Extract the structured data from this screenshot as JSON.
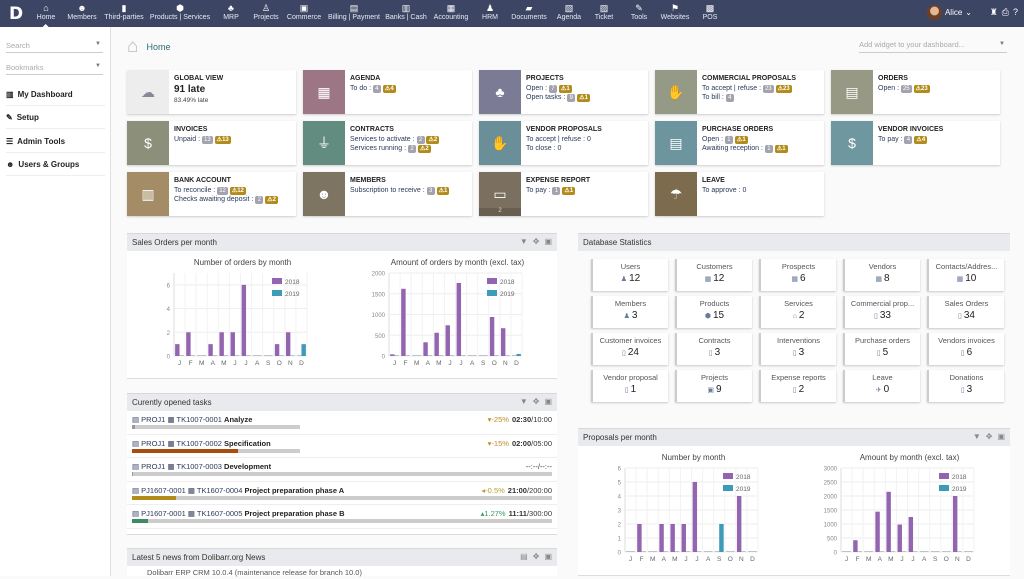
{
  "topbar": {
    "logo": "D",
    "menu": [
      {
        "label": "Home",
        "icon": "home-icon",
        "glyph": "⌂"
      },
      {
        "label": "Members",
        "icon": "members-icon",
        "glyph": "☻"
      },
      {
        "label": "Third-parties",
        "icon": "building-icon",
        "glyph": "▮"
      },
      {
        "label": "Products | Services",
        "icon": "cube-icon",
        "glyph": "⬢"
      },
      {
        "label": "MRP",
        "icon": "cubes-icon",
        "glyph": "♣"
      },
      {
        "label": "Projects",
        "icon": "sitemap-icon",
        "glyph": "♙"
      },
      {
        "label": "Commerce",
        "icon": "briefcase-icon",
        "glyph": "▣"
      },
      {
        "label": "Billing | Payment",
        "icon": "invoice-icon",
        "glyph": "▤"
      },
      {
        "label": "Banks | Cash",
        "icon": "bank-icon",
        "glyph": "▥"
      },
      {
        "label": "Accounting",
        "icon": "accounting-icon",
        "glyph": "▦"
      },
      {
        "label": "HRM",
        "icon": "user-tie-icon",
        "glyph": "♟"
      },
      {
        "label": "Documents",
        "icon": "folder-icon",
        "glyph": "▰"
      },
      {
        "label": "Agenda",
        "icon": "calendar-icon",
        "glyph": "▧"
      },
      {
        "label": "Ticket",
        "icon": "ticket-icon",
        "glyph": "▨"
      },
      {
        "label": "Tools",
        "icon": "wrench-icon",
        "glyph": "✎"
      },
      {
        "label": "Websites",
        "icon": "website-icon",
        "glyph": "⚑"
      },
      {
        "label": "POS",
        "icon": "cash-register-icon",
        "glyph": "▩"
      }
    ],
    "user": "Alice",
    "icons": [
      "user-tools-icon",
      "print-icon",
      "help-icon"
    ]
  },
  "sidebar": {
    "search_placeholder": "Search",
    "bookmarks_placeholder": "Bookmarks",
    "items": [
      {
        "label": "My Dashboard",
        "glyph": "▥"
      },
      {
        "label": "Setup",
        "glyph": "✎"
      },
      {
        "label": "Admin Tools",
        "glyph": "☰"
      },
      {
        "label": "Users & Groups",
        "glyph": "☻"
      }
    ]
  },
  "breadcrumb": "Home",
  "add_widget_placeholder": "Add widget to your dashboard...",
  "widgets": [
    {
      "title": "GLOBAL VIEW",
      "big": "91 late",
      "sub": "83.49% late",
      "color": "#ededed",
      "icon": "weather-storm-icon"
    },
    {
      "title": "AGENDA",
      "lines": [
        {
          "label": "To do : ",
          "badge": "4",
          "warn": "4"
        }
      ],
      "color": "#9d7686",
      "icon": "calendar-icon"
    },
    {
      "title": "PROJECTS",
      "lines": [
        {
          "label": "Open : ",
          "badge": "7",
          "warn": "1"
        },
        {
          "label": "Open tasks : ",
          "badge": "9",
          "warn": "1"
        }
      ],
      "color": "#7c7b95",
      "icon": "sitemap-icon"
    },
    {
      "title": "COMMERCIAL PROPOSALS",
      "lines": [
        {
          "label": "To accept | refuse : ",
          "badge": "23",
          "warn": "23"
        },
        {
          "label": "To bill : ",
          "badge": "4"
        }
      ],
      "color": "#959a86",
      "icon": "handshake-icon"
    },
    {
      "title": "ORDERS",
      "lines": [
        {
          "label": "Open : ",
          "badge": "25",
          "warn": "23"
        }
      ],
      "color": "#979985",
      "icon": "order-icon"
    },
    {
      "title": "INVOICES",
      "lines": [
        {
          "label": "Unpaid : ",
          "badge": "13",
          "warn": "13"
        }
      ],
      "color": "#8c907a",
      "icon": "invoice-icon"
    },
    {
      "title": "CONTRACTS",
      "lines": [
        {
          "label": "Services to activate : ",
          "badge": "2",
          "warn": "2"
        },
        {
          "label": "Services running : ",
          "badge": "2",
          "warn": "2"
        }
      ],
      "color": "#628c80",
      "icon": "plug-icon"
    },
    {
      "title": "VENDOR PROPOSALS",
      "lines": [
        {
          "label": "To accept | refuse : 0"
        },
        {
          "label": "To close : 0"
        }
      ],
      "color": "#6b8f98",
      "icon": "handshake-icon"
    },
    {
      "title": "PURCHASE ORDERS",
      "lines": [
        {
          "label": "Open : ",
          "badge": "1",
          "warn": "1"
        },
        {
          "label": "Awaiting reception : ",
          "badge": "1",
          "warn": "1"
        }
      ],
      "color": "#6d95a0",
      "icon": "order-icon"
    },
    {
      "title": "VENDOR INVOICES",
      "lines": [
        {
          "label": "To pay : ",
          "badge": "4",
          "warn": "4"
        }
      ],
      "color": "#6f97a0",
      "icon": "invoice-icon"
    },
    {
      "title": "BANK ACCOUNT",
      "lines": [
        {
          "label": "To reconcile : ",
          "badge": "12",
          "warn": "12"
        },
        {
          "label": "Checks awaiting deposit : ",
          "badge": "2",
          "warn": "2"
        }
      ],
      "color": "#a48c66",
      "icon": "bank-icon"
    },
    {
      "title": "MEMBERS",
      "lines": [
        {
          "label": "Subscription to receive : ",
          "badge": "3",
          "warn": "1"
        }
      ],
      "color": "#7d7461",
      "icon": "members-icon"
    },
    {
      "title": "EXPENSE REPORT",
      "lines": [
        {
          "label": "To pay : ",
          "badge": "1",
          "warn": "1"
        }
      ],
      "color": "#7b7060",
      "icon": "wallet-icon",
      "footer": "2"
    },
    {
      "title": "LEAVE",
      "lines": [
        {
          "label": "To approve : 0"
        }
      ],
      "color": "#7d6b4e",
      "icon": "beach-umbrella-icon"
    }
  ],
  "sales_panel": {
    "title": "Sales Orders per month"
  },
  "tasks_panel": {
    "title": "Curently opened tasks",
    "rows": [
      {
        "project": "PROJ1",
        "ref": "TK1007-0001",
        "name": "Analyze",
        "pct": "-25%",
        "pct_color": "#c28a2a",
        "arrow": "▾",
        "spent": "02:30",
        "planned": "/10:00",
        "progress": 2,
        "plan_frac": 0.4,
        "fill": "#999"
      },
      {
        "project": "PROJ1",
        "ref": "TK1007-0002",
        "name": "Specification",
        "pct": "-15%",
        "pct_color": "#c28a2a",
        "arrow": "▾",
        "spent": "02:00",
        "planned": "/05:00",
        "progress": 63,
        "plan_frac": 0.4,
        "fill": "#a94c10"
      },
      {
        "project": "PROJ1",
        "ref": "TK1007-0003",
        "name": "Development",
        "pct": "",
        "arrow": "",
        "spent": "",
        "planned": "--:--/--:--",
        "progress": 0,
        "plan_frac": 1,
        "fill": "#999"
      },
      {
        "project": "PJ1607-0001",
        "ref": "TK1607-0004",
        "name": "Project preparation phase A",
        "pct": "-0.5%",
        "pct_color": "#b8a030",
        "arrow": "◂",
        "spent": "21:00",
        "planned": "/200:00",
        "progress": 10.5,
        "plan_frac": 1,
        "fill": "#b38b1a"
      },
      {
        "project": "PJ1607-0001",
        "ref": "TK1607-0005",
        "name": "Project preparation phase B",
        "pct": "1.27%",
        "pct_color": "#3a9a60",
        "arrow": "▴",
        "spent": "11:11",
        "planned": "/300:00",
        "progress": 3.7,
        "plan_frac": 1,
        "fill": "#3c8a66"
      }
    ]
  },
  "news_panel": {
    "title": "Latest 5 news from Dolibarr.org News",
    "first_item": "Dolibarr ERP CRM 10.0.4 (maintenance release for branch 10.0)"
  },
  "stats_panel": {
    "title": "Database Statistics",
    "items": [
      {
        "label": "Users",
        "value": "12",
        "glyph": "♟"
      },
      {
        "label": "Customers",
        "value": "12",
        "glyph": "▦"
      },
      {
        "label": "Prospects",
        "value": "6",
        "glyph": "▦"
      },
      {
        "label": "Vendors",
        "value": "8",
        "glyph": "▦"
      },
      {
        "label": "Contacts/Addres...",
        "value": "10",
        "glyph": "▦"
      },
      {
        "label": "Members",
        "value": "3",
        "glyph": "♟"
      },
      {
        "label": "Products",
        "value": "15",
        "glyph": "⬢"
      },
      {
        "label": "Services",
        "value": "2",
        "glyph": "⌂"
      },
      {
        "label": "Commercial prop...",
        "value": "33",
        "glyph": "▯"
      },
      {
        "label": "Sales Orders",
        "value": "34",
        "glyph": "▯"
      },
      {
        "label": "Customer invoices",
        "value": "24",
        "glyph": "▯"
      },
      {
        "label": "Contracts",
        "value": "3",
        "glyph": "▯"
      },
      {
        "label": "Interventions",
        "value": "3",
        "glyph": "▯"
      },
      {
        "label": "Purchase orders",
        "value": "5",
        "glyph": "▯"
      },
      {
        "label": "Vendors invoices",
        "value": "6",
        "glyph": "▯"
      },
      {
        "label": "Vendor proposal",
        "value": "1",
        "glyph": "▯"
      },
      {
        "label": "Projects",
        "value": "9",
        "glyph": "▣"
      },
      {
        "label": "Expense reports",
        "value": "2",
        "glyph": "▯"
      },
      {
        "label": "Leave",
        "value": "0",
        "glyph": "✈"
      },
      {
        "label": "Donations",
        "value": "3",
        "glyph": "▯"
      }
    ]
  },
  "proposals_panel": {
    "title": "Proposals per month"
  },
  "colors": {
    "series_2018": "#9365b0",
    "series_2019": "#3d9ab8",
    "topbar": "#3c4664"
  },
  "chart_data": [
    {
      "type": "bar",
      "title": "Number of orders by month",
      "categories": [
        "J",
        "F",
        "M",
        "A",
        "M",
        "J",
        "J",
        "A",
        "S",
        "O",
        "N",
        "D"
      ],
      "ylim": [
        0,
        7
      ],
      "yticks": [
        0,
        2,
        4,
        6
      ],
      "grid": true,
      "legend": "top-right",
      "series": [
        {
          "name": "2018",
          "values": [
            1,
            2,
            0,
            1,
            2,
            2,
            6,
            0,
            0,
            1,
            2,
            0
          ]
        },
        {
          "name": "2019",
          "values": [
            0,
            0,
            0,
            0,
            0,
            0,
            0,
            0,
            0,
            0,
            0,
            1
          ]
        }
      ]
    },
    {
      "type": "bar",
      "title": "Amount of orders by month (excl. tax)",
      "categories": [
        "J",
        "F",
        "M",
        "A",
        "M",
        "J",
        "J",
        "A",
        "S",
        "O",
        "N",
        "D"
      ],
      "ylim": [
        0,
        2000
      ],
      "yticks": [
        0,
        500,
        1000,
        1500,
        2000
      ],
      "grid": true,
      "legend": "top-right",
      "series": [
        {
          "name": "2018",
          "values": [
            40,
            1620,
            0,
            330,
            560,
            740,
            1760,
            0,
            0,
            940,
            670,
            0
          ]
        },
        {
          "name": "2019",
          "values": [
            0,
            0,
            0,
            0,
            0,
            0,
            0,
            0,
            0,
            0,
            0,
            50
          ]
        }
      ]
    },
    {
      "type": "bar",
      "title": "Number by month",
      "categories": [
        "J",
        "F",
        "M",
        "A",
        "M",
        "J",
        "J",
        "A",
        "S",
        "O",
        "N",
        "D"
      ],
      "ylim": [
        0,
        6
      ],
      "yticks": [
        0,
        1,
        2,
        3,
        4,
        5,
        6
      ],
      "grid": true,
      "legend": "top-right",
      "series": [
        {
          "name": "2018",
          "values": [
            0,
            2,
            0,
            2,
            2,
            2,
            5,
            0,
            0,
            0,
            4,
            0
          ]
        },
        {
          "name": "2019",
          "values": [
            0,
            0,
            0,
            0,
            0,
            0,
            0,
            0,
            2,
            0,
            0,
            0
          ]
        }
      ]
    },
    {
      "type": "bar",
      "title": "Amount by month (excl. tax)",
      "categories": [
        "J",
        "F",
        "M",
        "A",
        "M",
        "J",
        "J",
        "A",
        "S",
        "O",
        "N",
        "D"
      ],
      "ylim": [
        0,
        3000
      ],
      "yticks": [
        0,
        500,
        1000,
        1500,
        2000,
        2500,
        3000
      ],
      "grid": true,
      "legend": "top-right",
      "series": [
        {
          "name": "2018",
          "values": [
            0,
            420,
            0,
            1440,
            2150,
            980,
            1250,
            0,
            0,
            0,
            2000,
            0
          ]
        },
        {
          "name": "2019",
          "values": [
            0,
            0,
            0,
            0,
            0,
            0,
            0,
            0,
            0,
            0,
            0,
            0
          ]
        }
      ]
    }
  ]
}
